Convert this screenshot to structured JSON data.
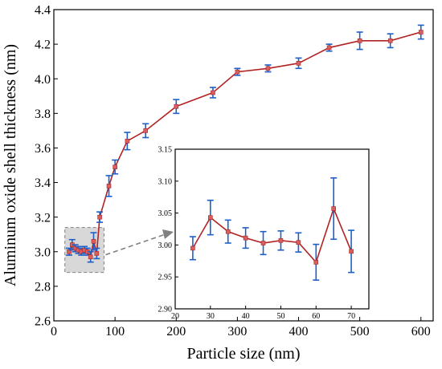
{
  "chart_data": [
    {
      "type": "line",
      "xlabel": "Particle size (nm)",
      "ylabel": "Aluminum oxide shell thickness (nm)",
      "xlim": [
        0,
        620
      ],
      "ylim": [
        2.6,
        4.4
      ],
      "x_ticks": [
        "0",
        "100",
        "200",
        "300",
        "400",
        "500",
        "600"
      ],
      "y_ticks": [
        "2.6",
        "2.8",
        "3.0",
        "3.2",
        "3.4",
        "3.6",
        "3.8",
        "4.0",
        "4.2",
        "4.4"
      ],
      "line_color": "#b22222",
      "marker_color": "#d95f5f",
      "error_color": "#1f5fc8",
      "grid": false,
      "series": [
        {
          "x": [
            25,
            30,
            35,
            40,
            45,
            50,
            55,
            60,
            65,
            70,
            75,
            90,
            100,
            120,
            150,
            200,
            260,
            300,
            350,
            400,
            450,
            500,
            550,
            600
          ],
          "y": [
            3.0,
            3.04,
            3.02,
            3.01,
            3.0,
            3.01,
            3.0,
            2.97,
            3.06,
            2.99,
            3.2,
            3.38,
            3.49,
            3.64,
            3.7,
            3.84,
            3.92,
            4.04,
            4.06,
            4.09,
            4.18,
            4.22,
            4.22,
            4.27
          ],
          "err": [
            0.02,
            0.03,
            0.02,
            0.02,
            0.02,
            0.02,
            0.02,
            0.03,
            0.05,
            0.03,
            0.03,
            0.06,
            0.04,
            0.05,
            0.04,
            0.04,
            0.03,
            0.02,
            0.02,
            0.03,
            0.02,
            0.05,
            0.04,
            0.04
          ]
        }
      ],
      "zoom_region": {
        "x": [
          18,
          82
        ],
        "y": [
          2.88,
          3.14
        ],
        "color": "#d8d8d8",
        "arrow_color": "#808080"
      }
    },
    {
      "type": "line",
      "xlabel": "",
      "ylabel": "",
      "xlim": [
        20,
        75
      ],
      "ylim": [
        2.9,
        3.15
      ],
      "x_ticks": [
        "20",
        "30",
        "40",
        "50",
        "60",
        "70"
      ],
      "y_ticks": [
        "2.90",
        "2.95",
        "3.00",
        "3.05",
        "3.10",
        "3.15"
      ],
      "series": [
        {
          "x": [
            25,
            30,
            35,
            40,
            45,
            50,
            55,
            60,
            65,
            70
          ],
          "y": [
            2.995,
            3.043,
            3.021,
            3.011,
            3.003,
            3.007,
            3.004,
            2.973,
            3.057,
            2.99
          ],
          "err": [
            0.018,
            0.027,
            0.018,
            0.016,
            0.018,
            0.015,
            0.015,
            0.028,
            0.048,
            0.033
          ]
        }
      ]
    }
  ]
}
